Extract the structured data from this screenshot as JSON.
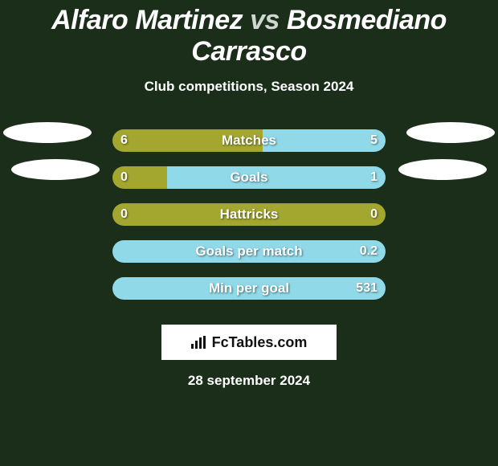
{
  "background_color": "#1a2e1a",
  "title": {
    "left_name": "Alfaro Martinez",
    "vs": "vs",
    "right_name": "Bosmediano Carrasco",
    "font_size": 34,
    "color_main": "#ffffff",
    "color_dim": "#cfd8cf"
  },
  "subtitle": {
    "text": "Club competitions, Season 2024",
    "font_size": 17,
    "color": "#ffffff"
  },
  "colors": {
    "left": "#a3a72f",
    "right": "#8fd9e8",
    "text": "#ffffff",
    "text_shadow": "rgba(0,0,0,0.55)"
  },
  "bar": {
    "track_width": 340,
    "track_height": 28,
    "border_radius": 14
  },
  "rows": [
    {
      "label": "Matches",
      "left_val": "6",
      "right_val": "5",
      "left_pct": 55,
      "right_pct": 45
    },
    {
      "label": "Goals",
      "left_val": "0",
      "right_val": "1",
      "left_pct": 20,
      "right_pct": 80
    },
    {
      "label": "Hattricks",
      "left_val": "0",
      "right_val": "0",
      "left_pct": 100,
      "right_pct": 0
    },
    {
      "label": "Goals per match",
      "left_val": "",
      "right_val": "0.2",
      "left_pct": 0,
      "right_pct": 100
    },
    {
      "label": "Min per goal",
      "left_val": "",
      "right_val": "531",
      "left_pct": 0,
      "right_pct": 100
    }
  ],
  "brand": {
    "text": "FcTables.com",
    "bg": "#ffffff",
    "color": "#111111"
  },
  "date": {
    "text": "28 september 2024",
    "color": "#ffffff",
    "font_size": 17
  },
  "ellipse": {
    "color": "#ffffff",
    "width": 110,
    "height": 26
  }
}
